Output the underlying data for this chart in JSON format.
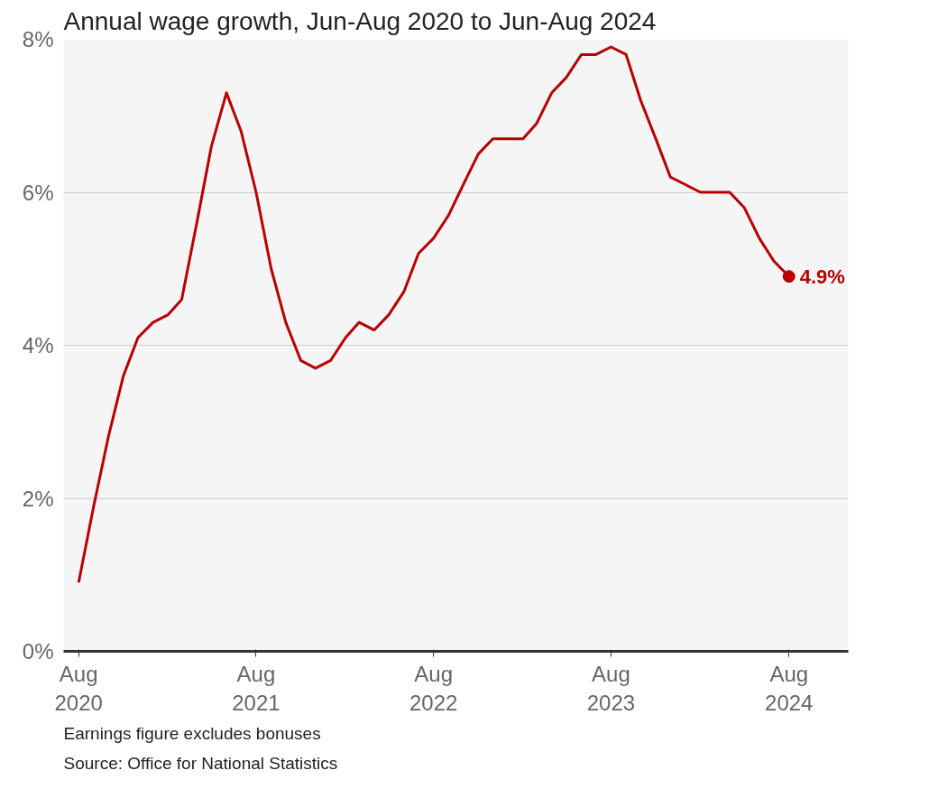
{
  "chart_data": {
    "type": "line",
    "title": "Annual wage growth, Jun-Aug 2020 to Jun-Aug 2024",
    "x": [
      "2020-08",
      "2020-09",
      "2020-10",
      "2020-11",
      "2020-12",
      "2021-01",
      "2021-02",
      "2021-03",
      "2021-04",
      "2021-05",
      "2021-06",
      "2021-07",
      "2021-08",
      "2021-09",
      "2021-10",
      "2021-11",
      "2021-12",
      "2022-01",
      "2022-02",
      "2022-03",
      "2022-04",
      "2022-05",
      "2022-06",
      "2022-07",
      "2022-08",
      "2022-09",
      "2022-10",
      "2022-11",
      "2022-12",
      "2023-01",
      "2023-02",
      "2023-03",
      "2023-04",
      "2023-05",
      "2023-06",
      "2023-07",
      "2023-08",
      "2023-09",
      "2023-10",
      "2023-11",
      "2023-12",
      "2024-01",
      "2024-02",
      "2024-03",
      "2024-04",
      "2024-05",
      "2024-06",
      "2024-07",
      "2024-08"
    ],
    "series": [
      {
        "color": "#b80000",
        "values": [
          0.9,
          1.9,
          2.8,
          3.6,
          4.1,
          4.3,
          4.4,
          4.6,
          5.6,
          6.6,
          7.3,
          6.8,
          6.0,
          5.0,
          4.3,
          3.8,
          3.7,
          3.8,
          4.1,
          4.3,
          4.2,
          4.4,
          4.7,
          5.2,
          5.4,
          5.7,
          6.1,
          6.5,
          6.7,
          6.7,
          6.7,
          6.9,
          7.3,
          7.5,
          7.8,
          7.8,
          7.9,
          7.8,
          7.2,
          6.7,
          6.2,
          6.1,
          6.0,
          6.0,
          6.0,
          5.8,
          5.4,
          5.1,
          4.9
        ],
        "value_labels": [
          null,
          null,
          null,
          null,
          null,
          null,
          null,
          null,
          null,
          null,
          null,
          null,
          null,
          null,
          null,
          null,
          null,
          null,
          null,
          null,
          null,
          null,
          null,
          null,
          null,
          null,
          null,
          null,
          null,
          null,
          null,
          null,
          null,
          null,
          null,
          null,
          null,
          null,
          null,
          null,
          null,
          null,
          null,
          null,
          null,
          null,
          null,
          null,
          "4.9%"
        ]
      }
    ],
    "xlim": [
      "2020-07",
      "2024-12"
    ],
    "xticks": [
      {
        "value": "2020-08",
        "label": "Aug\n2020"
      },
      {
        "value": "2021-08",
        "label": "Aug\n2021"
      },
      {
        "value": "2022-08",
        "label": "Aug\n2022"
      },
      {
        "value": "2023-08",
        "label": "Aug\n2023"
      },
      {
        "value": "2024-08",
        "label": "Aug\n2024"
      }
    ],
    "ylim": [
      0,
      8
    ],
    "yticks": [
      {
        "value": 0,
        "label": "0%"
      },
      {
        "value": 2,
        "label": "2%"
      },
      {
        "value": 4,
        "label": "4%"
      },
      {
        "value": 6,
        "label": "6%"
      },
      {
        "value": 8,
        "label": "8%"
      }
    ],
    "grid": "y",
    "line_style": "solid",
    "annotations": [
      "Earnings figure excludes bonuses",
      "Source: Office for National Statistics"
    ]
  }
}
